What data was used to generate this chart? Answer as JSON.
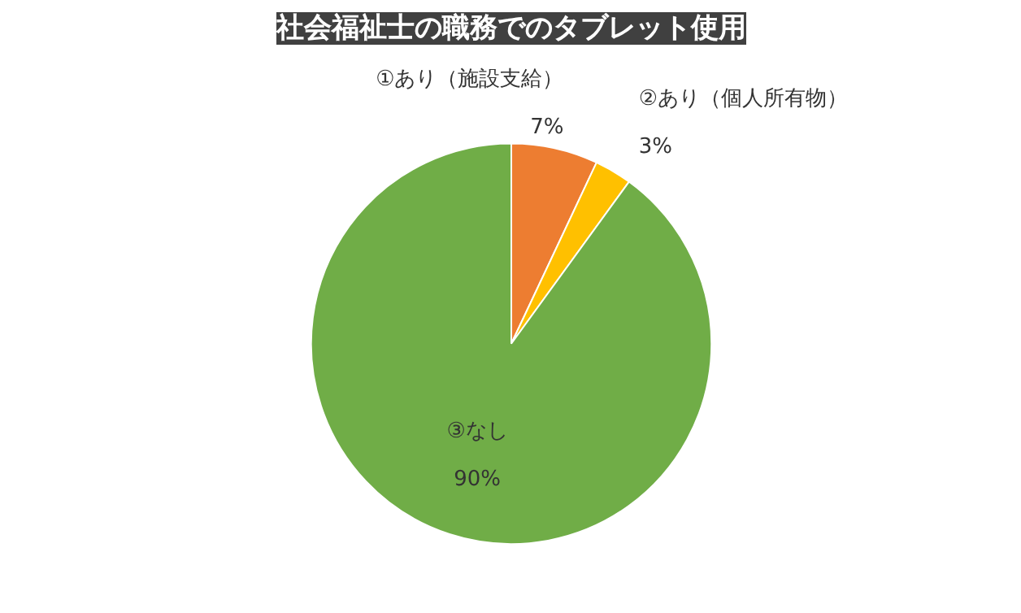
{
  "chart_data": {
    "type": "pie",
    "title": "社会福祉士の職務でのタブレット使用",
    "categories": [
      "①あり（施設支給）",
      "②あり（個人所有物）",
      "③なし"
    ],
    "values": [
      7,
      3,
      90
    ],
    "colors": [
      "#ed7d31",
      "#ffc000",
      "#70ad47"
    ],
    "value_labels": [
      "7%",
      "3%",
      "90%"
    ],
    "legend": false
  }
}
